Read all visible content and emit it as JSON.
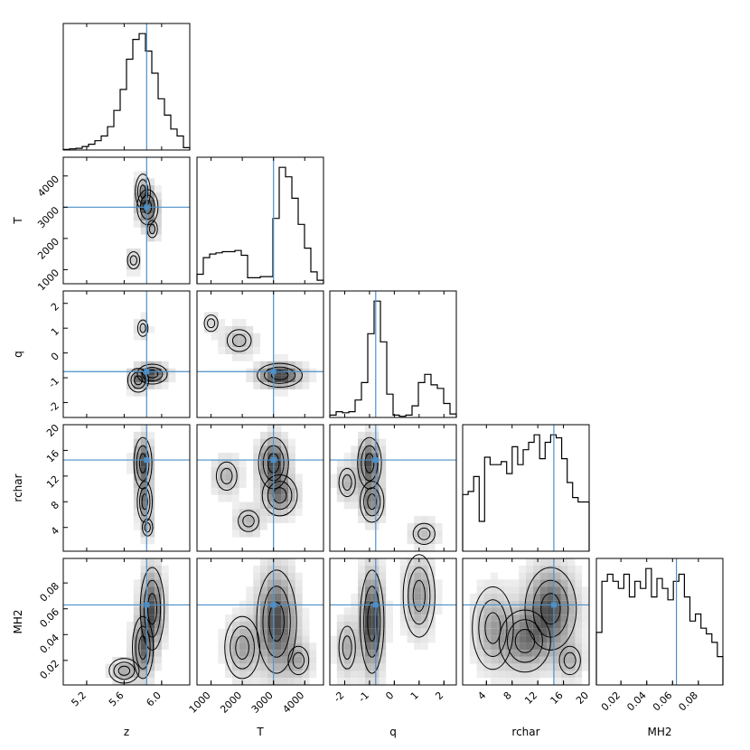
{
  "chart_data": {
    "type": "corner",
    "parameters": [
      "z",
      "T",
      "q",
      "rchar",
      "MH2"
    ],
    "axis_labels": {
      "z": "z",
      "T": "T",
      "q": "q",
      "rchar": "rchar",
      "MH2": "MH2"
    },
    "truths": {
      "z": 5.84,
      "T": 3000,
      "q": -0.75,
      "rchar": 14.5,
      "MH2": 0.063
    },
    "truth_color": "#4c8fc9",
    "ranges": {
      "z": [
        4.95,
        6.3
      ],
      "T": [
        550,
        4600
      ],
      "q": [
        -2.6,
        2.5
      ],
      "rchar": [
        0.3,
        20
      ],
      "MH2": [
        0.001,
        0.099
      ]
    },
    "ticks": {
      "z": [
        "5.2",
        "5.6",
        "6.0"
      ],
      "T": [
        "1000",
        "2000",
        "3000",
        "4000"
      ],
      "q": [
        "-2",
        "-1",
        "0",
        "1",
        "2"
      ],
      "rchar": [
        "4",
        "8",
        "12",
        "16",
        "20"
      ],
      "MH2": [
        "0.02",
        "0.04",
        "0.06",
        "0.08"
      ]
    },
    "tick_values": {
      "z": [
        5.2,
        5.6,
        6.0
      ],
      "T": [
        1000,
        2000,
        3000,
        4000
      ],
      "q": [
        -2,
        -1,
        0,
        1,
        2
      ],
      "rchar": [
        4,
        8,
        12,
        16,
        20
      ],
      "MH2": [
        0.02,
        0.04,
        0.06,
        0.08
      ]
    },
    "histograms": {
      "z": [
        0.005,
        0.01,
        0.015,
        0.03,
        0.05,
        0.08,
        0.12,
        0.2,
        0.34,
        0.52,
        0.78,
        0.95,
        1.0,
        0.85,
        0.66,
        0.44,
        0.3,
        0.18,
        0.12,
        0.02
      ],
      "T": [
        0.08,
        0.22,
        0.25,
        0.26,
        0.27,
        0.27,
        0.28,
        0.24,
        0.05,
        0.05,
        0.06,
        0.06,
        0.55,
        0.98,
        0.9,
        0.72,
        0.5,
        0.3,
        0.1,
        0.03
      ],
      "q": [
        0.02,
        0.05,
        0.04,
        0.05,
        0.15,
        0.3,
        0.72,
        1.0,
        0.65,
        0.2,
        0.02,
        0.01,
        0.02,
        0.1,
        0.3,
        0.37,
        0.28,
        0.25,
        0.12,
        0.03
      ],
      "rchar": [
        0.38,
        0.4,
        0.5,
        0.2,
        0.63,
        0.58,
        0.58,
        0.6,
        0.52,
        0.7,
        0.58,
        0.68,
        0.73,
        0.78,
        0.62,
        0.73,
        0.78,
        0.76,
        0.62,
        0.46,
        0.36,
        0.33,
        0.33
      ],
      "MH2": [
        0.37,
        0.73,
        0.78,
        0.73,
        0.68,
        0.78,
        0.62,
        0.73,
        0.68,
        0.82,
        0.62,
        0.75,
        0.68,
        0.6,
        0.73,
        0.78,
        0.62,
        0.45,
        0.5,
        0.4,
        0.36,
        0.3,
        0.2
      ]
    },
    "title": "",
    "grid": false,
    "legend": "none"
  }
}
